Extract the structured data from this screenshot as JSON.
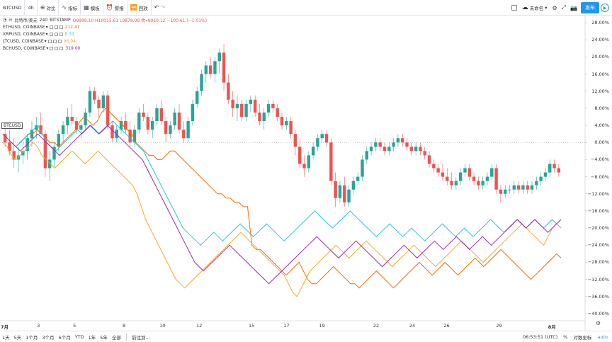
{
  "toolbar": {
    "symbol": "BTCUSD",
    "interval": "4h",
    "compare_label": "对比",
    "indicators_label": "指标",
    "templates_label": "模板",
    "alert_label": "警报",
    "replay_label": "回放",
    "save_label": "未命名",
    "publish_label": "发布"
  },
  "legend": {
    "main": {
      "name": "比特币/美元",
      "interval": "240",
      "exchange": "BITSTAMP",
      "ohlc": "O9999.10  H10015.61  L9878.09  收•9910.12  −100.61 (−1.01%)"
    },
    "series": [
      {
        "name": "ETHUSD, COINBASE",
        "value": "212.47",
        "color": "#ef6c00"
      },
      {
        "name": "XRPUSD, COINBASE",
        "value": "0.31",
        "color": "#26c6da"
      },
      {
        "name": "LTCUSD, COINBASE",
        "value": "96.04",
        "color": "#f9a825"
      },
      {
        "name": "BCHUSD, COINBASE",
        "value": "319.00",
        "color": "#9c27b0"
      }
    ]
  },
  "colors": {
    "up": "#26a69a",
    "down": "#ef5350",
    "eth": "#ef6c00",
    "xrp": "#26c6da",
    "ltc": "#f9a825",
    "bch": "#9c27b0",
    "accent": "#2196f3"
  },
  "price_axis": {
    "labels": [
      "28.00%",
      "24.00%",
      "20.00%",
      "16.00%",
      "12.00%",
      "8.00%",
      "4.00%",
      "0.00%",
      "−4.00%",
      "−8.00%",
      "−12.00%",
      "−16.00%",
      "−20.00%",
      "−24.00%",
      "−28.00%",
      "−32.00%",
      "−36.00%",
      "−40.00%"
    ],
    "values": [
      28,
      24,
      20,
      16,
      12,
      8,
      4,
      0,
      -4,
      -8,
      -12,
      -16,
      -20,
      -24,
      -28,
      -32,
      -36,
      -40
    ]
  },
  "time_axis": {
    "labels": [
      "7月",
      "3",
      "5",
      "8",
      "10",
      "12",
      "15",
      "17",
      "19",
      "22",
      "24",
      "26",
      "29",
      "8月"
    ],
    "bold": [
      true,
      false,
      false,
      false,
      false,
      false,
      false,
      false,
      false,
      false,
      false,
      false,
      false,
      true
    ]
  },
  "chart_data": {
    "type": "line",
    "btc_candles_pct": [
      [
        2,
        4,
        -1,
        0
      ],
      [
        0,
        3,
        -3,
        -2
      ],
      [
        -2,
        1,
        -6,
        -4
      ],
      [
        -4,
        -1,
        -7,
        -3
      ],
      [
        -3,
        0,
        -5,
        -2
      ],
      [
        -2,
        2,
        -4,
        1
      ],
      [
        1,
        5,
        -1,
        3
      ],
      [
        3,
        6,
        1,
        4
      ],
      [
        4,
        7,
        2,
        2
      ],
      [
        2,
        3,
        -8,
        -6
      ],
      [
        -6,
        -2,
        -9,
        -4
      ],
      [
        -4,
        0,
        -6,
        -1
      ],
      [
        -1,
        3,
        -2,
        2
      ],
      [
        2,
        5,
        0,
        4
      ],
      [
        4,
        8,
        2,
        6
      ],
      [
        6,
        9,
        4,
        5
      ],
      [
        5,
        6,
        2,
        3
      ],
      [
        3,
        5,
        1,
        4
      ],
      [
        4,
        8,
        3,
        7
      ],
      [
        7,
        13,
        6,
        12
      ],
      [
        12,
        13,
        9,
        10
      ],
      [
        10,
        11,
        6,
        8
      ],
      [
        8,
        12,
        7,
        11
      ],
      [
        11,
        12,
        3,
        4
      ],
      [
        4,
        5,
        0,
        1
      ],
      [
        1,
        4,
        0,
        3
      ],
      [
        3,
        6,
        2,
        5
      ],
      [
        5,
        7,
        2,
        3
      ],
      [
        3,
        5,
        -1,
        0
      ],
      [
        0,
        4,
        -1,
        3
      ],
      [
        3,
        8,
        2,
        7
      ],
      [
        7,
        9,
        5,
        6
      ],
      [
        6,
        7,
        2,
        3
      ],
      [
        3,
        6,
        1,
        5
      ],
      [
        5,
        9,
        4,
        8
      ],
      [
        8,
        10,
        4,
        5
      ],
      [
        5,
        6,
        0,
        2
      ],
      [
        2,
        5,
        1,
        4
      ],
      [
        4,
        8,
        3,
        7
      ],
      [
        7,
        9,
        2,
        3
      ],
      [
        3,
        5,
        0,
        1
      ],
      [
        1,
        6,
        0,
        5
      ],
      [
        5,
        10,
        4,
        9
      ],
      [
        9,
        13,
        8,
        12
      ],
      [
        12,
        17,
        11,
        16
      ],
      [
        16,
        19,
        14,
        18
      ],
      [
        18,
        20,
        15,
        16
      ],
      [
        16,
        20,
        14,
        19
      ],
      [
        19,
        22,
        16,
        21
      ],
      [
        21,
        23,
        12,
        14
      ],
      [
        14,
        16,
        9,
        10
      ],
      [
        10,
        12,
        6,
        8
      ],
      [
        8,
        11,
        5,
        9
      ],
      [
        9,
        10,
        5,
        6
      ],
      [
        6,
        10,
        5,
        9
      ],
      [
        9,
        11,
        7,
        10
      ],
      [
        10,
        11,
        6,
        7
      ],
      [
        7,
        9,
        4,
        5
      ],
      [
        5,
        8,
        3,
        7
      ],
      [
        7,
        10,
        6,
        9
      ],
      [
        9,
        10,
        7,
        8
      ],
      [
        8,
        9,
        5,
        6
      ],
      [
        6,
        7,
        3,
        4
      ],
      [
        4,
        6,
        3,
        5
      ],
      [
        5,
        6,
        1,
        2
      ],
      [
        2,
        3,
        -3,
        -1
      ],
      [
        -1,
        1,
        -6,
        -5
      ],
      [
        -5,
        -3,
        -8,
        -6
      ],
      [
        -6,
        -2,
        -7,
        -3
      ],
      [
        -3,
        0,
        -4,
        -1
      ],
      [
        -1,
        2,
        -2,
        1
      ],
      [
        1,
        3,
        0,
        2
      ],
      [
        2,
        3,
        -1,
        0
      ],
      [
        0,
        1,
        -10,
        -9
      ],
      [
        -9,
        -7,
        -15,
        -13
      ],
      [
        -13,
        -9,
        -14,
        -10
      ],
      [
        -10,
        -8,
        -15,
        -14
      ],
      [
        -14,
        -10,
        -15,
        -11
      ],
      [
        -11,
        -8,
        -12,
        -9
      ],
      [
        -9,
        -7,
        -10,
        -8
      ],
      [
        -8,
        -3,
        -9,
        -4
      ],
      [
        -4,
        -1,
        -5,
        -2
      ],
      [
        -2,
        0,
        -3,
        -1
      ],
      [
        -1,
        1,
        -2,
        0
      ],
      [
        0,
        1,
        -2,
        -1
      ],
      [
        -1,
        0,
        -3,
        -2
      ],
      [
        -2,
        0,
        -3,
        -1
      ],
      [
        -1,
        1,
        -2,
        0
      ],
      [
        0,
        2,
        -1,
        1
      ],
      [
        1,
        2,
        -1,
        0
      ],
      [
        0,
        1,
        -2,
        -1
      ],
      [
        -1,
        0,
        -3,
        -2
      ],
      [
        -2,
        0,
        -3,
        -1
      ],
      [
        -1,
        0,
        -3,
        -2
      ],
      [
        -2,
        -1,
        -4,
        -3
      ],
      [
        -3,
        -2,
        -6,
        -5
      ],
      [
        -5,
        -4,
        -7,
        -6
      ],
      [
        -6,
        -5,
        -8,
        -7
      ],
      [
        -7,
        -5,
        -9,
        -8
      ],
      [
        -8,
        -6,
        -10,
        -9
      ],
      [
        -9,
        -7,
        -11,
        -10
      ],
      [
        -10,
        -8,
        -11,
        -9
      ],
      [
        -9,
        -6,
        -10,
        -7
      ],
      [
        -7,
        -5,
        -8,
        -6
      ],
      [
        -6,
        -5,
        -9,
        -8
      ],
      [
        -8,
        -7,
        -10,
        -9
      ],
      [
        -9,
        -8,
        -11,
        -10
      ],
      [
        -10,
        -8,
        -11,
        -9
      ],
      [
        -9,
        -7,
        -10,
        -8
      ],
      [
        -8,
        -5,
        -9,
        -6
      ],
      [
        -6,
        -5,
        -12,
        -11
      ],
      [
        -11,
        -10,
        -14,
        -12
      ],
      [
        -12,
        -10,
        -13,
        -11
      ],
      [
        -11,
        -10,
        -12,
        -11
      ],
      [
        -11,
        -9,
        -12,
        -10
      ],
      [
        -10,
        -9,
        -12,
        -11
      ],
      [
        -11,
        -9,
        -12,
        -10
      ],
      [
        -10,
        -9,
        -12,
        -11
      ],
      [
        -11,
        -9,
        -12,
        -10
      ],
      [
        -10,
        -8,
        -11,
        -9
      ],
      [
        -9,
        -7,
        -10,
        -8
      ],
      [
        -8,
        -6,
        -9,
        -7
      ],
      [
        -7,
        -4,
        -8,
        -5
      ],
      [
        -5,
        -4,
        -7,
        -6
      ],
      [
        -6,
        -5,
        -8,
        -7
      ]
    ],
    "series": [
      {
        "name": "ETHUSD, COINBASE",
        "values": [
          2,
          1,
          0,
          -1,
          0,
          1,
          2,
          2,
          3,
          2,
          1,
          0,
          0,
          -1,
          0,
          1,
          2,
          3,
          5,
          6,
          5,
          4,
          5,
          7,
          8,
          7,
          6,
          5,
          4,
          3,
          2,
          0,
          -1,
          -2,
          -3,
          -3,
          -4,
          -4,
          -3,
          -2,
          -2,
          -3,
          -4,
          -5,
          -6,
          -7,
          -8,
          -9,
          -10,
          -11,
          -12,
          -12,
          -13,
          -13,
          -14,
          -14,
          -15,
          -15,
          -24,
          -25,
          -25,
          -26,
          -27,
          -28,
          -29,
          -30,
          -31,
          -30,
          -29,
          -28,
          -30,
          -32,
          -33,
          -33,
          -32,
          -31,
          -30,
          -29,
          -30,
          -31,
          -32,
          -33,
          -33,
          -34,
          -33,
          -32,
          -31,
          -30,
          -31,
          -32,
          -33,
          -34,
          -33,
          -32,
          -31,
          -30,
          -29,
          -28,
          -29,
          -30,
          -31,
          -30,
          -29,
          -28,
          -29,
          -30,
          -31,
          -30,
          -29,
          -28,
          -27,
          -28,
          -29,
          -28,
          -27,
          -26,
          -25,
          -26,
          -27,
          -28,
          -29,
          -30,
          -31,
          -32,
          -31,
          -30,
          -29,
          -28,
          -27,
          -26,
          -27
        ]
      },
      {
        "name": "XRPUSD, COINBASE",
        "values": [
          2,
          1,
          0,
          -1,
          0,
          1,
          2,
          3,
          4,
          2,
          0,
          -1,
          -2,
          -1,
          0,
          1,
          2,
          3,
          2,
          3,
          4,
          3,
          2,
          3,
          4,
          5,
          4,
          3,
          2,
          1,
          0,
          -1,
          -2,
          -4,
          -6,
          -8,
          -10,
          -12,
          -14,
          -16,
          -18,
          -20,
          -21,
          -22,
          -23,
          -24,
          -23,
          -22,
          -21,
          -22,
          -23,
          -22,
          -21,
          -20,
          -19,
          -20,
          -21,
          -22,
          -21,
          -20,
          -19,
          -20,
          -21,
          -22,
          -23,
          -22,
          -21,
          -20,
          -19,
          -18,
          -17,
          -16,
          -17,
          -18,
          -19,
          -20,
          -19,
          -18,
          -17,
          -16,
          -17,
          -18,
          -19,
          -20,
          -21,
          -22,
          -21,
          -20,
          -19,
          -20,
          -21,
          -22,
          -21,
          -20,
          -21,
          -22,
          -23,
          -22,
          -21,
          -20,
          -19,
          -20,
          -21,
          -22,
          -21,
          -20,
          -21,
          -22,
          -21,
          -20,
          -19,
          -18,
          -19,
          -20,
          -21,
          -20,
          -19,
          -18,
          -19,
          -20,
          -19,
          -18,
          -19,
          -20,
          -19,
          -18,
          -19,
          -20
        ]
      },
      {
        "name": "LTCUSD, COINBASE",
        "values": [
          0,
          -1,
          -3,
          -4,
          -3,
          -2,
          -1,
          0,
          -1,
          -3,
          -4,
          -5,
          -6,
          -5,
          -4,
          -3,
          -2,
          -3,
          -4,
          -5,
          -4,
          -3,
          -2,
          -3,
          -4,
          -5,
          -6,
          -7,
          -8,
          -9,
          -10,
          -12,
          -15,
          -18,
          -20,
          -22,
          -24,
          -26,
          -28,
          -30,
          -32,
          -33,
          -34,
          -33,
          -32,
          -31,
          -30,
          -29,
          -28,
          -27,
          -26,
          -25,
          -24,
          -23,
          -22,
          -21,
          -22,
          -23,
          -24,
          -25,
          -26,
          -27,
          -28,
          -29,
          -30,
          -31,
          -33,
          -35,
          -36,
          -34,
          -32,
          -30,
          -29,
          -28,
          -27,
          -26,
          -25,
          -24,
          -25,
          -26,
          -27,
          -26,
          -25,
          -24,
          -23,
          -24,
          -25,
          -26,
          -27,
          -28,
          -29,
          -28,
          -27,
          -26,
          -25,
          -24,
          -25,
          -26,
          -27,
          -28,
          -29,
          -28,
          -27,
          -26,
          -25,
          -24,
          -23,
          -24,
          -25,
          -26,
          -27,
          -28,
          -27,
          -26,
          -25,
          -24,
          -23,
          -22,
          -21,
          -20,
          -19,
          -20,
          -21,
          -22,
          -23,
          -24,
          -22,
          -20,
          -19,
          -20
        ]
      },
      {
        "name": "BCHUSD, COINBASE",
        "values": [
          2,
          1,
          0,
          -1,
          -2,
          -1,
          0,
          1,
          2,
          1,
          0,
          -1,
          -2,
          -3,
          -2,
          -1,
          0,
          1,
          2,
          3,
          4,
          3,
          2,
          3,
          4,
          3,
          2,
          1,
          0,
          -1,
          -2,
          -3,
          -4,
          -6,
          -8,
          -10,
          -12,
          -14,
          -16,
          -18,
          -20,
          -22,
          -24,
          -26,
          -28,
          -29,
          -30,
          -29,
          -28,
          -27,
          -26,
          -25,
          -24,
          -25,
          -26,
          -27,
          -28,
          -29,
          -30,
          -31,
          -32,
          -33,
          -32,
          -31,
          -30,
          -29,
          -28,
          -27,
          -26,
          -25,
          -24,
          -23,
          -22,
          -23,
          -24,
          -25,
          -26,
          -27,
          -26,
          -25,
          -24,
          -23,
          -24,
          -25,
          -26,
          -27,
          -28,
          -29,
          -28,
          -27,
          -26,
          -25,
          -24,
          -25,
          -26,
          -27,
          -26,
          -25,
          -24,
          -23,
          -24,
          -25,
          -24,
          -23,
          -22,
          -23,
          -24,
          -25,
          -24,
          -23,
          -22,
          -23,
          -24,
          -23,
          -22,
          -21,
          -20,
          -19,
          -18,
          -19,
          -20,
          -19,
          -18,
          -19,
          -20,
          -21,
          -20,
          -19,
          -18
        ]
      }
    ],
    "ylim": [
      -40,
      28
    ]
  },
  "bottom": {
    "ranges": [
      "1天",
      "5天",
      "1个月",
      "3个月",
      "6个月",
      "YTD",
      "1年",
      "5年",
      "全部"
    ],
    "goto_label": "前往到...",
    "time": "06:53:51 (UTC)",
    "pct_label": "%",
    "log_label": "对数坐标",
    "auto_label": "auto"
  },
  "badge": "BTCUSD"
}
